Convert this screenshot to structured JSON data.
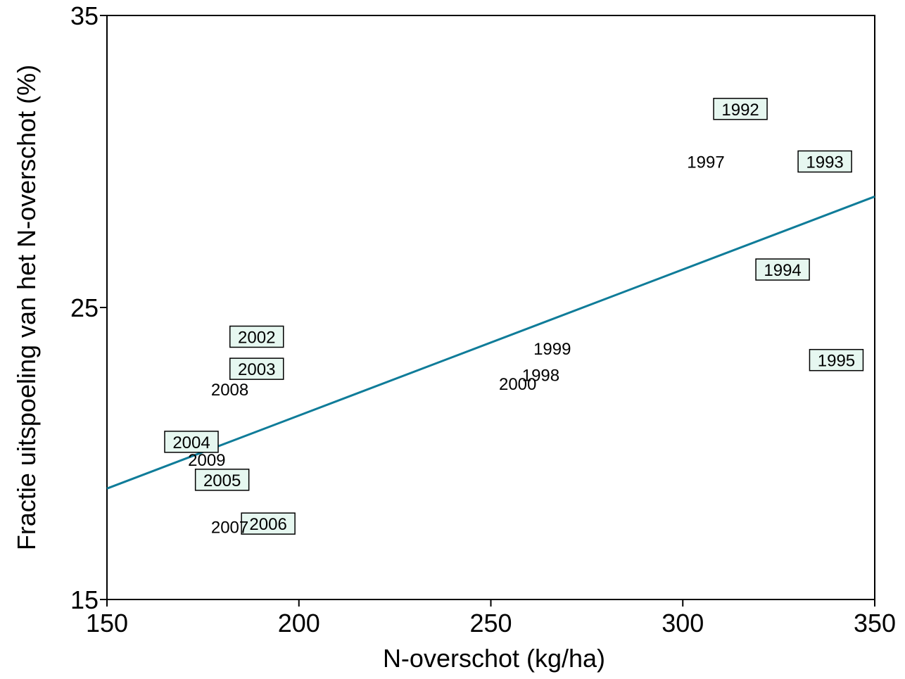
{
  "chart_data": {
    "type": "scatter",
    "title": "",
    "xlabel": "N-overschot (kg/ha)",
    "ylabel": "Fractie uitspoeling van het N-overschot (%)",
    "xlim": [
      150,
      350
    ],
    "ylim": [
      15,
      35
    ],
    "xticks": [
      "150",
      "200",
      "250",
      "300",
      "350"
    ],
    "yticks": [
      "15",
      "25",
      "35"
    ],
    "grid": false,
    "colors": {
      "trendline": "#0f7c99",
      "box_fill": "#e6f7f0",
      "box_stroke": "#000000"
    },
    "trendline": {
      "x": [
        150,
        350
      ],
      "y": [
        18.8,
        28.8
      ]
    },
    "points": [
      {
        "label": "1992",
        "x": 315,
        "y": 31.8,
        "boxed": true
      },
      {
        "label": "1993",
        "x": 337,
        "y": 30.0,
        "boxed": true
      },
      {
        "label": "1994",
        "x": 326,
        "y": 26.3,
        "boxed": true
      },
      {
        "label": "1995",
        "x": 340,
        "y": 23.2,
        "boxed": true
      },
      {
        "label": "1997",
        "x": 306,
        "y": 30.0,
        "boxed": false
      },
      {
        "label": "1998",
        "x": 263,
        "y": 22.7,
        "boxed": false
      },
      {
        "label": "1999",
        "x": 266,
        "y": 23.6,
        "boxed": false
      },
      {
        "label": "2000",
        "x": 257,
        "y": 22.4,
        "boxed": false
      },
      {
        "label": "2002",
        "x": 189,
        "y": 24.0,
        "boxed": true
      },
      {
        "label": "2003",
        "x": 189,
        "y": 22.9,
        "boxed": true
      },
      {
        "label": "2004",
        "x": 172,
        "y": 20.4,
        "boxed": true
      },
      {
        "label": "2005",
        "x": 180,
        "y": 19.1,
        "boxed": true
      },
      {
        "label": "2006",
        "x": 192,
        "y": 17.6,
        "boxed": true
      },
      {
        "label": "2007",
        "x": 182,
        "y": 17.5,
        "boxed": false
      },
      {
        "label": "2008",
        "x": 182,
        "y": 22.2,
        "boxed": false
      },
      {
        "label": "2009",
        "x": 176,
        "y": 19.8,
        "boxed": false
      }
    ]
  }
}
